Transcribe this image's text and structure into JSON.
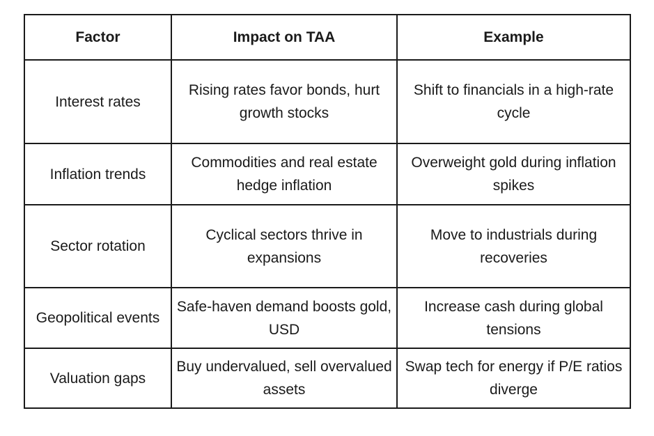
{
  "table": {
    "headers": [
      "Factor",
      "Impact on TAA",
      "Example"
    ],
    "rows": [
      {
        "factor": "Interest rates",
        "impact": "Rising rates favor bonds, hurt growth stocks",
        "example": "Shift to financials in a high-rate cycle"
      },
      {
        "factor": "Inflation trends",
        "impact": "Commodities and real estate hedge inflation",
        "example": "Overweight gold during inflation spikes"
      },
      {
        "factor": "Sector rotation",
        "impact": "Cyclical sectors thrive in expansions",
        "example": "Move to industrials during recoveries"
      },
      {
        "factor": "Geopolitical events",
        "impact": "Safe-haven demand boosts gold, USD",
        "example": "Increase cash during global tensions"
      },
      {
        "factor": "Valuation gaps",
        "impact": "Buy undervalued, sell overvalued assets",
        "example": "Swap tech for energy if P/E ratios diverge"
      }
    ]
  }
}
